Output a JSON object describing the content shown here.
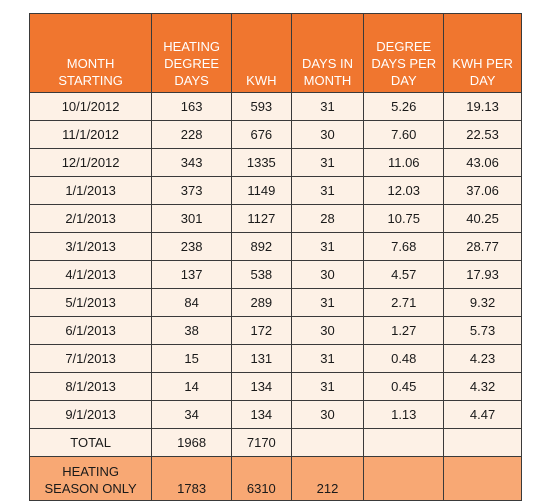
{
  "table": {
    "headers": [
      [
        "MONTH",
        "STARTING"
      ],
      [
        "HEATING",
        "DEGREE",
        "DAYS"
      ],
      [
        "KWH"
      ],
      [
        "DAYS IN",
        "MONTH"
      ],
      [
        "DEGREE",
        "DAYS PER",
        "DAY"
      ],
      [
        "KWH PER",
        "DAY"
      ]
    ],
    "rows": [
      [
        "10/1/2012",
        "163",
        "593",
        "31",
        "5.26",
        "19.13"
      ],
      [
        "11/1/2012",
        "228",
        "676",
        "30",
        "7.60",
        "22.53"
      ],
      [
        "12/1/2012",
        "343",
        "1335",
        "31",
        "11.06",
        "43.06"
      ],
      [
        "1/1/2013",
        "373",
        "1149",
        "31",
        "12.03",
        "37.06"
      ],
      [
        "2/1/2013",
        "301",
        "1127",
        "28",
        "10.75",
        "40.25"
      ],
      [
        "3/1/2013",
        "238",
        "892",
        "31",
        "7.68",
        "28.77"
      ],
      [
        "4/1/2013",
        "137",
        "538",
        "30",
        "4.57",
        "17.93"
      ],
      [
        "5/1/2013",
        "84",
        "289",
        "31",
        "2.71",
        "9.32"
      ],
      [
        "6/1/2013",
        "38",
        "172",
        "30",
        "1.27",
        "5.73"
      ],
      [
        "7/1/2013",
        "15",
        "131",
        "31",
        "0.48",
        "4.23"
      ],
      [
        "8/1/2013",
        "14",
        "134",
        "31",
        "0.45",
        "4.32"
      ],
      [
        "9/1/2013",
        "34",
        "134",
        "30",
        "1.13",
        "4.47"
      ]
    ],
    "total": [
      "TOTAL",
      "1968",
      "7170",
      "",
      "",
      ""
    ],
    "season": [
      [
        "HEATING",
        "SEASON ONLY"
      ],
      "1783",
      "6310",
      "212",
      "",
      ""
    ]
  },
  "colors": {
    "header_bg": "#f0762f",
    "body_bg": "#fdf1e6",
    "season_bg": "#f8a874"
  }
}
